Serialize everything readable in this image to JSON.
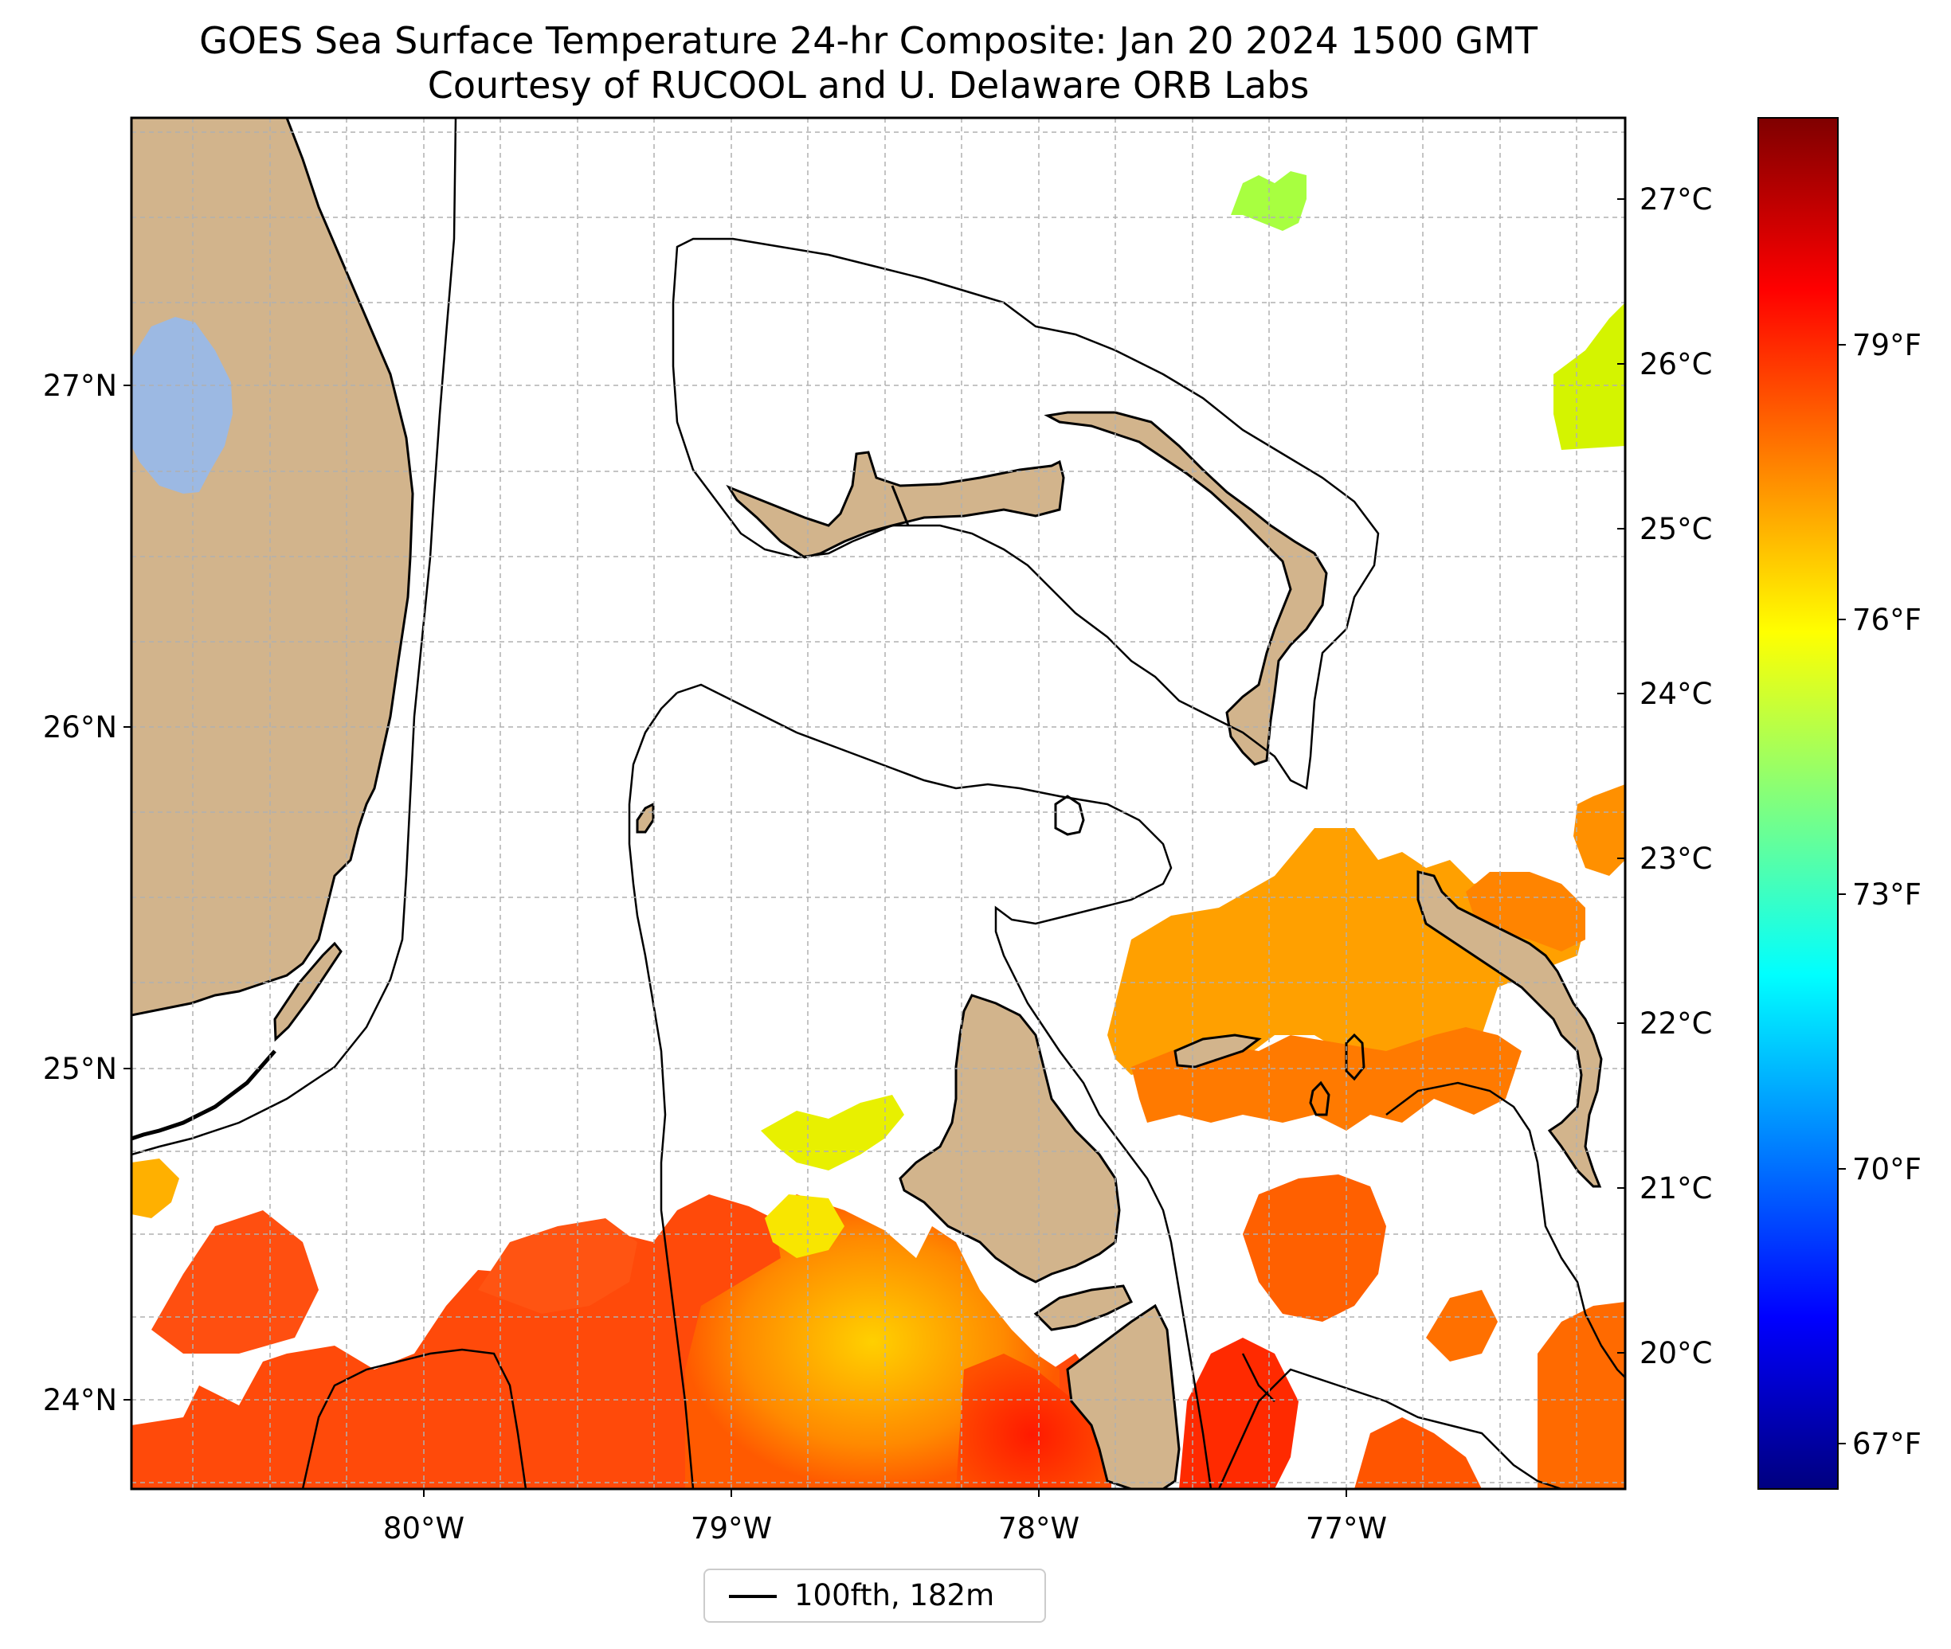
{
  "title": "GOES Sea Surface Temperature 24-hr Composite: Jan 20 2024 1500 GMT",
  "subtitle": "Courtesy of RUCOOL and U. Delaware ORB Labs",
  "map": {
    "lat_labels": [
      "27°N",
      "26°N",
      "25°N",
      "24°N"
    ],
    "lat_values": [
      27,
      26,
      25,
      24
    ],
    "lon_labels": [
      "80°W",
      "79°W",
      "78°W",
      "77°W"
    ],
    "lon_values": [
      -80,
      -79,
      -78,
      -77
    ],
    "extent": {
      "lon": [
        -80.95,
        -76.1
      ],
      "lat": [
        23.75,
        27.8
      ]
    },
    "land_color": "#d2b48c",
    "lake_color": "#9cb9e3",
    "grid": true
  },
  "colorbar": {
    "colormap": "jet",
    "range_c": [
      19.4,
      27.7
    ],
    "celsius_labels": [
      "27°C",
      "26°C",
      "25°C",
      "24°C",
      "23°C",
      "22°C",
      "21°C",
      "20°C"
    ],
    "celsius_values": [
      27,
      26,
      25,
      24,
      23,
      22,
      21,
      20
    ],
    "fahrenheit_labels": [
      "79°F",
      "76°F",
      "73°F",
      "70°F",
      "67°F"
    ],
    "fahrenheit_values": [
      79,
      76,
      73,
      70,
      67
    ]
  },
  "legend": {
    "label": "100fth, 182m"
  }
}
